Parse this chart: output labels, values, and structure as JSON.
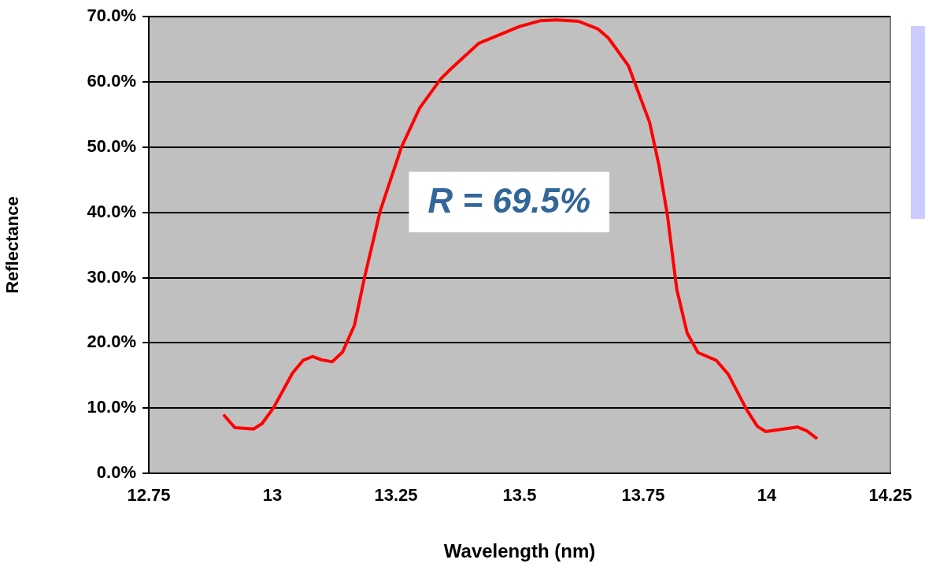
{
  "chart_data": {
    "type": "line",
    "xlabel": "Wavelength (nm)",
    "ylabel": "Reflectance",
    "annotations": [
      "R = 69.5%"
    ],
    "xlim": [
      12.75,
      14.25
    ],
    "xticks": [
      12.75,
      13,
      13.25,
      13.5,
      13.75,
      14,
      14.25
    ],
    "ylim": [
      0,
      70
    ],
    "yticks": [
      {
        "value": 0,
        "label": "0.0%"
      },
      {
        "value": 10,
        "label": "10.0%"
      },
      {
        "value": 20,
        "label": "20.0%"
      },
      {
        "value": 30,
        "label": "30.0%"
      },
      {
        "value": 40,
        "label": "40.0%"
      },
      {
        "value": 50,
        "label": "50.0%"
      },
      {
        "value": 60,
        "label": "60.0%"
      },
      {
        "value": 70,
        "label": "70.0%"
      }
    ],
    "grid": "y",
    "legend": false,
    "marker": "none",
    "line_style": "solid",
    "series": [
      {
        "color": "#ff0000",
        "x": [
          12.901,
          12.924,
          12.962,
          12.979,
          13.002,
          13.041,
          13.062,
          13.081,
          13.099,
          13.121,
          13.142,
          13.166,
          13.186,
          13.218,
          13.261,
          13.298,
          13.341,
          13.361,
          13.417,
          13.5,
          13.543,
          13.575,
          13.619,
          13.659,
          13.68,
          13.72,
          13.763,
          13.782,
          13.799,
          13.818,
          13.839,
          13.861,
          13.898,
          13.922,
          13.959,
          13.981,
          13.998,
          14.062,
          14.081,
          14.102
        ],
        "values": [
          9.0,
          7.0,
          6.8,
          7.6,
          10.0,
          15.4,
          17.3,
          17.9,
          17.4,
          17.1,
          18.6,
          22.7,
          29.9,
          40.2,
          50.0,
          56.0,
          60.5,
          62.0,
          65.9,
          68.5,
          69.4,
          69.5,
          69.3,
          68.1,
          66.7,
          62.5,
          53.8,
          47.2,
          39.6,
          28.2,
          21.5,
          18.5,
          17.3,
          15.2,
          9.8,
          7.2,
          6.4,
          7.1,
          6.5,
          5.3
        ]
      }
    ]
  }
}
